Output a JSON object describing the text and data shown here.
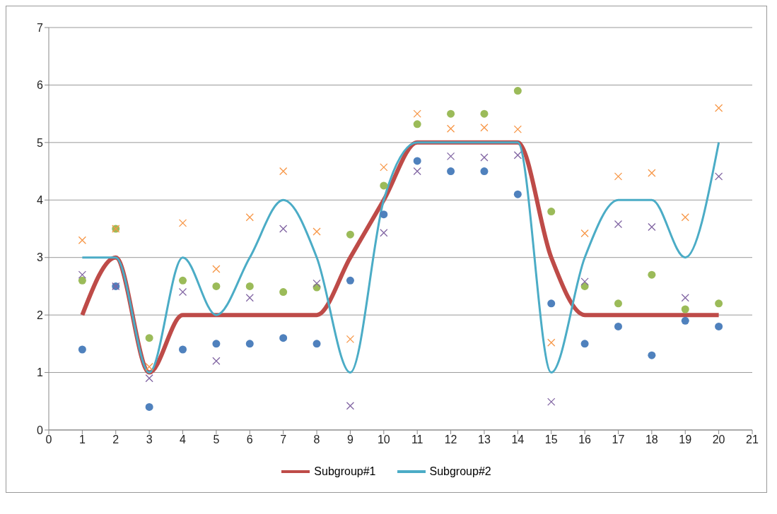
{
  "chart_data": {
    "type": "line",
    "x": [
      1,
      2,
      3,
      4,
      5,
      6,
      7,
      8,
      9,
      10,
      11,
      12,
      13,
      14,
      15,
      16,
      17,
      18,
      19,
      20
    ],
    "series": [
      {
        "type": "scatter",
        "color": "#4f81bd",
        "marker": "circle",
        "values": [
          1.4,
          2.5,
          0.4,
          1.4,
          1.5,
          1.5,
          1.6,
          1.5,
          2.6,
          3.75,
          4.68,
          4.5,
          4.5,
          4.1,
          2.2,
          1.5,
          1.8,
          1.3,
          1.9,
          1.8
        ]
      },
      {
        "type": "scatter",
        "color": "#9bbb59",
        "marker": "circle",
        "values": [
          2.6,
          3.5,
          1.6,
          2.6,
          2.5,
          2.5,
          2.4,
          2.48,
          3.4,
          4.25,
          5.32,
          5.5,
          5.5,
          5.9,
          3.8,
          2.5,
          2.2,
          2.7,
          2.1,
          2.2
        ]
      },
      {
        "type": "scatter",
        "color": "#f79646",
        "marker": "cross",
        "values": [
          3.3,
          3.5,
          1.1,
          3.6,
          2.8,
          3.7,
          4.5,
          3.45,
          1.58,
          4.57,
          5.5,
          5.24,
          5.26,
          5.23,
          1.52,
          3.42,
          4.41,
          4.47,
          3.7,
          5.6
        ]
      },
      {
        "type": "scatter",
        "color": "#8064a2",
        "marker": "cross",
        "values": [
          2.7,
          2.5,
          0.9,
          2.4,
          1.2,
          2.3,
          3.5,
          2.55,
          0.42,
          3.43,
          4.5,
          4.76,
          4.74,
          4.78,
          0.49,
          2.58,
          3.58,
          3.53,
          2.3,
          4.41
        ]
      },
      {
        "name": "Subgroup#1",
        "color": "#be4b48",
        "marker": "none",
        "values": [
          2,
          3,
          1,
          2,
          2,
          2,
          2,
          2,
          3,
          4,
          5,
          5,
          5,
          5,
          3,
          2,
          2,
          2,
          2,
          2
        ]
      },
      {
        "name": "Subgroup#2",
        "color": "#4bacc6",
        "marker": "none",
        "values": [
          3,
          3,
          1,
          3,
          2,
          3,
          4,
          3,
          1,
          4,
          5,
          5,
          5,
          5,
          1,
          3,
          4,
          4,
          3,
          5
        ]
      }
    ],
    "xlim": [
      0,
      21
    ],
    "xticks": [
      0,
      1,
      2,
      3,
      4,
      5,
      6,
      7,
      8,
      9,
      10,
      11,
      12,
      13,
      14,
      15,
      16,
      17,
      18,
      19,
      20,
      21
    ],
    "ylim": [
      0,
      7
    ],
    "yticks": [
      0,
      1,
      2,
      3,
      4,
      5,
      6,
      7
    ],
    "grid": "y",
    "legend": "bottom",
    "line_style": "solid"
  }
}
